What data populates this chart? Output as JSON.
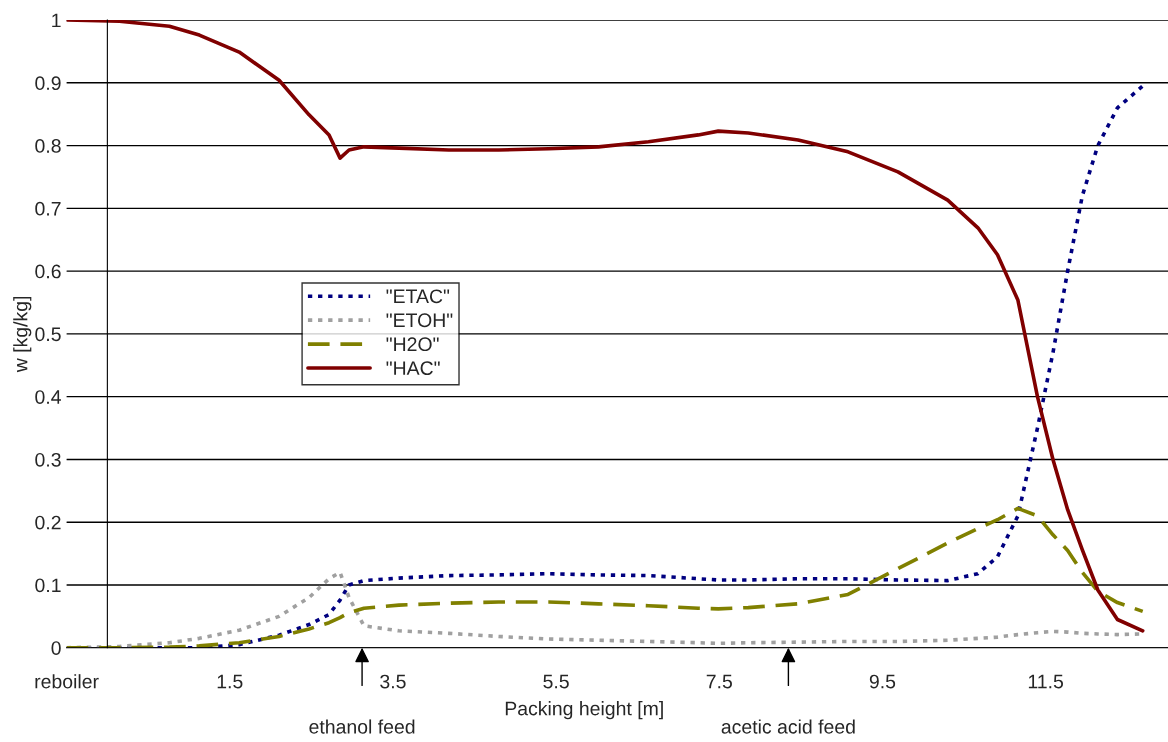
{
  "chart_data": {
    "type": "line",
    "xlabel": "Packing height [m]",
    "ylabel": "w [kg/kg]",
    "x": [
      -0.5,
      0.148,
      0.76,
      1.127,
      1.616,
      2.105,
      2.472,
      2.717,
      2.852,
      2.962,
      3.145,
      3.573,
      4.185,
      4.797,
      5.408,
      6.02,
      6.632,
      7.243,
      7.488,
      7.855,
      8.466,
      9.078,
      9.69,
      10.3,
      10.67,
      10.91,
      11.16,
      11.4,
      11.59,
      11.77,
      11.95,
      12.14,
      12.38,
      12.69
    ],
    "series": [
      {
        "name": "\"ETAC\"",
        "color": "#000080",
        "line_style": "dotted",
        "values": [
          0,
          0,
          0,
          0,
          0.005,
          0.02,
          0.037,
          0.053,
          0.076,
          0.1,
          0.107,
          0.111,
          0.115,
          0.116,
          0.118,
          0.116,
          0.115,
          0.11,
          0.108,
          0.108,
          0.11,
          0.11,
          0.108,
          0.107,
          0.118,
          0.145,
          0.21,
          0.35,
          0.47,
          0.6,
          0.72,
          0.8,
          0.86,
          0.895
        ]
      },
      {
        "name": "\"ETOH\"",
        "color": "#a0a0a0",
        "line_style": "dotted",
        "values": [
          0,
          0.002,
          0.008,
          0.015,
          0.028,
          0.05,
          0.08,
          0.11,
          0.12,
          0.08,
          0.035,
          0.027,
          0.023,
          0.018,
          0.014,
          0.012,
          0.01,
          0.008,
          0.007,
          0.008,
          0.009,
          0.01,
          0.01,
          0.012,
          0.015,
          0.017,
          0.021,
          0.024,
          0.026,
          0.025,
          0.023,
          0.022,
          0.021,
          0.022
        ]
      },
      {
        "name": "\"H2O\"",
        "color": "#808000",
        "line_style": "dashed",
        "values": [
          0,
          0,
          0.001,
          0.003,
          0.008,
          0.018,
          0.03,
          0.04,
          0.048,
          0.056,
          0.063,
          0.068,
          0.071,
          0.073,
          0.073,
          0.07,
          0.067,
          0.063,
          0.062,
          0.064,
          0.07,
          0.085,
          0.126,
          0.167,
          0.19,
          0.204,
          0.222,
          0.21,
          0.18,
          0.155,
          0.12,
          0.09,
          0.072,
          0.058
        ]
      },
      {
        "name": "\"HAC\"",
        "color": "#800000",
        "line_style": "solid",
        "values": [
          1.0,
          0.998,
          0.99,
          0.976,
          0.949,
          0.904,
          0.849,
          0.817,
          0.78,
          0.793,
          0.798,
          0.796,
          0.793,
          0.793,
          0.795,
          0.798,
          0.806,
          0.817,
          0.823,
          0.82,
          0.809,
          0.79,
          0.758,
          0.713,
          0.669,
          0.626,
          0.554,
          0.4,
          0.3,
          0.22,
          0.156,
          0.092,
          0.045,
          0.027
        ]
      }
    ],
    "xlim": [
      -0.5,
      13
    ],
    "xticks": [
      {
        "value": -0.5,
        "label": "reboiler"
      },
      1.5,
      3.5,
      5.5,
      7.5,
      9.5,
      11.5
    ],
    "ylim": [
      0,
      1
    ],
    "yticks": [
      0,
      0.1,
      0.2,
      0.3,
      0.4,
      0.5,
      0.6,
      0.7,
      0.8,
      0.9,
      1
    ],
    "grid": "y",
    "legend": "center left",
    "annotations": [
      "ethanol feed",
      "acetic acid feed"
    ]
  }
}
